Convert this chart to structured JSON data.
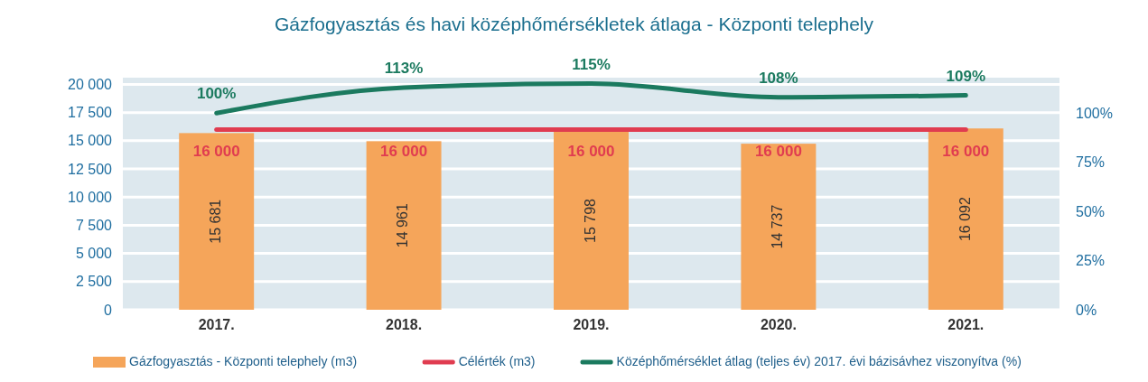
{
  "chart_data": {
    "type": "bar",
    "title": "Gázfogyasztás és havi középhőmérsékletek átlaga - Központi telephely",
    "categories": [
      "2017.",
      "2018.",
      "2019.",
      "2020.",
      "2021."
    ],
    "series": [
      {
        "name": "Gázfogyasztás - Központi telephely (m3)",
        "color": "#f5a55a",
        "values": [
          15681,
          14961,
          15798,
          14737,
          16092
        ],
        "value_labels": [
          "15 681",
          "14 961",
          "15 798",
          "14 737",
          "16 092"
        ]
      },
      {
        "name": "Célérték (m3)",
        "type": "line",
        "color": "#e03c50",
        "values": [
          16000,
          16000,
          16000,
          16000,
          16000
        ],
        "value_labels": [
          "16 000",
          "16 000",
          "16 000",
          "16 000",
          "16 000"
        ]
      },
      {
        "name": "Középhőmérséklet átlag (teljes év) 2017. évi bázisávhez viszonyítva (%)",
        "type": "line",
        "axis": "y2",
        "color": "#1b7a5f",
        "values": [
          100,
          113,
          115,
          108,
          109
        ],
        "value_labels": [
          "100%",
          "113%",
          "115%",
          "108%",
          "109%"
        ]
      }
    ],
    "ylim": [
      0,
      20600
    ],
    "yticks": [
      {
        "value": 0,
        "label": "0"
      },
      {
        "value": 2500,
        "label": "2 500"
      },
      {
        "value": 5000,
        "label": "5 000"
      },
      {
        "value": 7500,
        "label": "7 500"
      },
      {
        "value": 10000,
        "label": "10 000"
      },
      {
        "value": 12500,
        "label": "12 500"
      },
      {
        "value": 15000,
        "label": "15 000"
      },
      {
        "value": 17500,
        "label": "17 500"
      },
      {
        "value": 20000,
        "label": "20 000"
      }
    ],
    "y2lim": [
      0,
      118
    ],
    "y2ticks": [
      {
        "value": 0,
        "label": "0%"
      },
      {
        "value": 25,
        "label": "25%"
      },
      {
        "value": 50,
        "label": "50%"
      },
      {
        "value": 75,
        "label": "75%"
      },
      {
        "value": 100,
        "label": "100%"
      }
    ],
    "grid": "y",
    "legend": "bottom",
    "line_style": "solid",
    "marker": "none"
  }
}
